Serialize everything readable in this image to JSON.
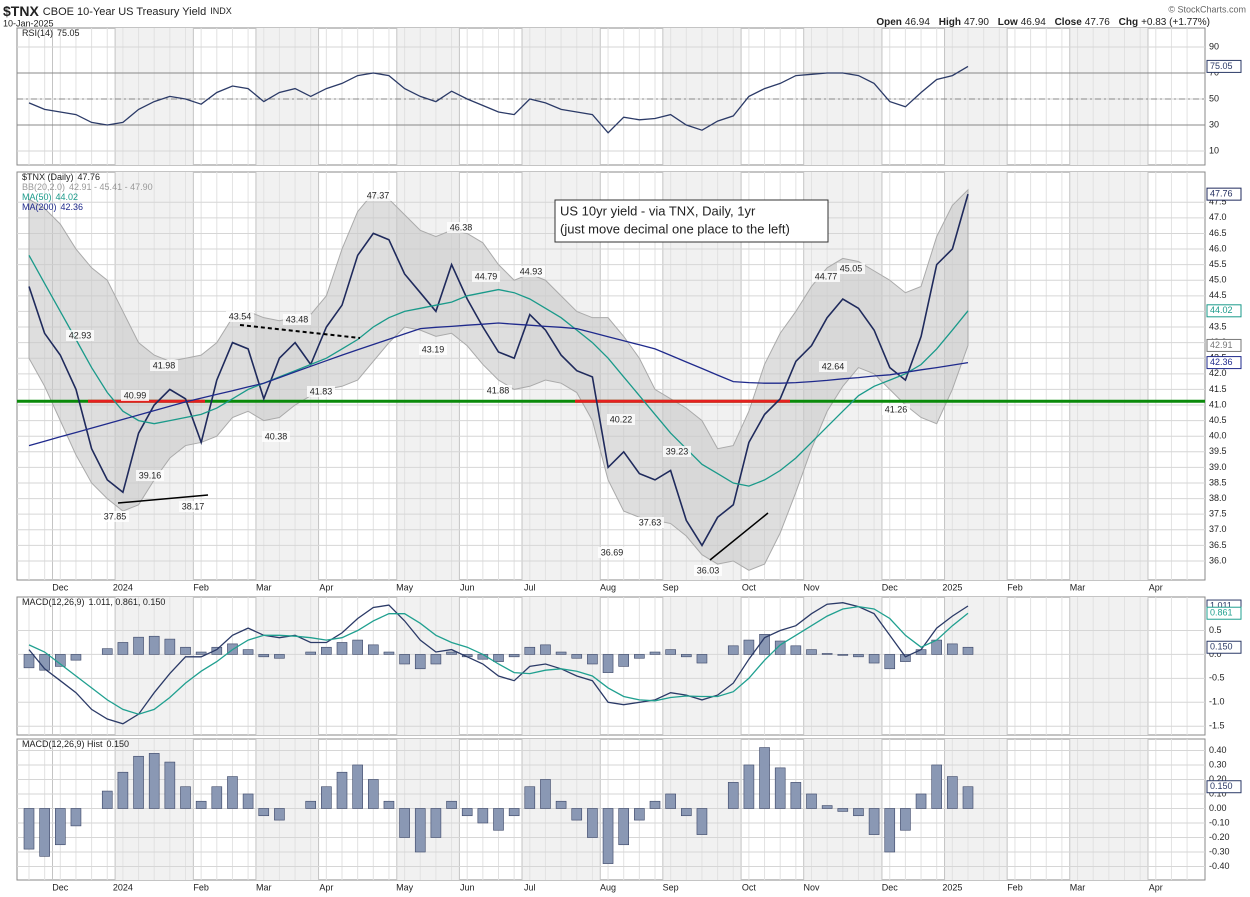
{
  "header": {
    "symbol": "$TNX",
    "name": "CBOE 10-Year US Treasury Yield",
    "exchange": "INDX",
    "date": "10-Jan-2025",
    "copyright": "© StockCharts.com",
    "quote": [
      {
        "label": "Open",
        "value": "46.94"
      },
      {
        "label": "High",
        "value": "47.90"
      },
      {
        "label": "Low",
        "value": "46.94"
      },
      {
        "label": "Close",
        "value": "47.76"
      },
      {
        "label": "Chg",
        "value": "+0.83 (+1.77%)"
      }
    ]
  },
  "chart_data": [
    {
      "type": "line",
      "ylim": [
        -0.8,
        104.6
      ],
      "yticks": [
        10,
        30,
        50,
        70,
        90
      ],
      "levels": [
        70,
        50,
        30
      ],
      "grid": true,
      "series": [
        {
          "name": "RSI(14)",
          "color": "#2b3a67",
          "values": [
            47,
            42,
            40,
            38,
            32,
            30,
            32,
            42,
            48,
            52,
            50,
            46,
            55,
            60,
            58,
            48,
            55,
            58,
            52,
            58,
            62,
            68,
            70,
            68,
            58,
            52,
            48,
            56,
            50,
            45,
            40,
            38,
            50,
            47,
            42,
            40,
            38,
            24,
            36,
            34,
            35,
            38,
            30,
            26,
            33,
            37,
            52,
            58,
            62,
            68,
            69,
            70,
            70,
            68,
            62,
            48,
            44,
            55,
            65,
            68,
            75.05,
            null,
            null,
            null,
            null,
            null,
            null,
            null,
            null,
            null,
            null,
            null,
            null,
            null,
            null
          ]
        }
      ]
    },
    {
      "type": "line",
      "ylim": [
        35.39,
        48.47
      ],
      "grid": true,
      "yticks": [
        {
          "value": 36,
          "label": "36.0"
        },
        36.5,
        {
          "value": 37,
          "label": "37.0"
        },
        37.5,
        {
          "value": 38,
          "label": "38.0"
        },
        38.5,
        {
          "value": 39,
          "label": "39.0"
        },
        39.5,
        {
          "value": 40,
          "label": "40.0"
        },
        40.5,
        {
          "value": 41,
          "label": "41.0"
        },
        41.5,
        {
          "value": 42,
          "label": "42.0"
        },
        42.5,
        {
          "value": 43,
          "label": "43.0"
        },
        43.5,
        {
          "value": 44,
          "label": "44.0"
        },
        44.5,
        {
          "value": 45,
          "label": "45.0"
        },
        45.5,
        {
          "value": 46,
          "label": "46.0"
        },
        46.5,
        {
          "value": 47,
          "label": "47.0"
        },
        47.5
      ],
      "categories": [
        null,
        null,
        "Dec",
        null,
        null,
        null,
        "2024",
        null,
        null,
        null,
        null,
        "Feb",
        null,
        null,
        null,
        "Mar",
        null,
        null,
        null,
        "Apr",
        null,
        null,
        null,
        null,
        "May",
        null,
        null,
        null,
        "Jun",
        null,
        null,
        null,
        "Jul",
        null,
        null,
        null,
        null,
        "Aug",
        null,
        null,
        null,
        "Sep",
        null,
        null,
        null,
        null,
        "Oct",
        null,
        null,
        null,
        "Nov",
        null,
        null,
        null,
        null,
        "Dec",
        null,
        null,
        null,
        "2025",
        null,
        null,
        null,
        "Feb",
        null,
        null,
        null,
        "Mar",
        null,
        null,
        null,
        null,
        "Apr",
        null,
        null
      ],
      "series": [
        {
          "name": "$TNX (Daily)",
          "color": "#1f2a5c",
          "values": [
            44.8,
            43.3,
            42.6,
            41.5,
            39.6,
            38.6,
            38.2,
            40.1,
            41.0,
            41.5,
            41.2,
            39.8,
            41.8,
            43.0,
            42.8,
            41.2,
            42.5,
            43.0,
            42.3,
            43.5,
            44.2,
            45.8,
            46.5,
            46.3,
            45.2,
            44.6,
            44.0,
            45.5,
            44.4,
            43.5,
            42.7,
            42.5,
            43.9,
            43.4,
            42.6,
            42.1,
            41.9,
            39.0,
            39.5,
            38.8,
            38.6,
            38.9,
            37.3,
            36.5,
            37.4,
            37.8,
            39.8,
            40.7,
            41.2,
            42.4,
            42.9,
            43.8,
            44.4,
            44.1,
            43.4,
            42.2,
            41.8,
            43.2,
            45.5,
            46.0,
            47.76,
            null,
            null,
            null,
            null,
            null,
            null,
            null,
            null,
            null,
            null,
            null,
            null,
            null,
            null
          ]
        },
        {
          "name": "MA(50)",
          "color": "#1a9a8a",
          "values": [
            45.8,
            44.9,
            44.0,
            43.1,
            42.2,
            41.4,
            40.8,
            40.5,
            40.4,
            40.5,
            40.6,
            40.7,
            40.9,
            41.2,
            41.5,
            41.7,
            41.9,
            42.1,
            42.3,
            42.5,
            42.8,
            43.1,
            43.5,
            43.8,
            44.0,
            44.1,
            44.2,
            44.3,
            44.5,
            44.6,
            44.7,
            44.6,
            44.4,
            44.1,
            43.8,
            43.4,
            43.0,
            42.5,
            41.9,
            41.3,
            40.7,
            40.1,
            39.6,
            39.1,
            38.8,
            38.5,
            38.4,
            38.6,
            38.9,
            39.3,
            39.8,
            40.3,
            40.8,
            41.3,
            41.6,
            41.8,
            42.0,
            42.3,
            42.8,
            43.4,
            44.02,
            null,
            null,
            null,
            null,
            null,
            null,
            null,
            null,
            null,
            null,
            null,
            null,
            null,
            null
          ]
        },
        {
          "name": "MA(200)",
          "color": "#1f2a8c",
          "values": [
            39.7,
            39.84,
            39.98,
            40.12,
            40.26,
            40.4,
            40.54,
            40.68,
            40.82,
            40.96,
            41.1,
            41.22,
            41.34,
            41.46,
            41.58,
            41.7,
            41.88,
            42.06,
            42.24,
            42.42,
            42.6,
            42.77,
            42.94,
            43.11,
            43.28,
            43.45,
            43.49,
            43.52,
            43.56,
            43.59,
            43.63,
            43.59,
            43.56,
            43.52,
            43.49,
            43.45,
            43.32,
            43.19,
            43.06,
            42.93,
            42.8,
            42.59,
            42.38,
            42.17,
            41.96,
            41.75,
            41.72,
            41.7,
            41.7,
            41.72,
            41.75,
            41.79,
            41.84,
            41.88,
            41.93,
            41.97,
            42.05,
            42.13,
            42.2,
            42.28,
            42.36,
            null,
            null,
            null,
            null,
            null,
            null,
            null,
            null,
            null,
            null,
            null,
            null,
            null,
            null
          ]
        }
      ],
      "bands": {
        "name": "BB(20,2.0)",
        "legend_values": "42.91 - 45.41 - 47.90",
        "color": "#c8c8c8",
        "upper": [
          47.6,
          47.3,
          46.8,
          46.0,
          45.4,
          45.0,
          44.0,
          43.0,
          42.6,
          42.4,
          42.5,
          42.6,
          43.0,
          43.8,
          44.0,
          43.8,
          43.7,
          43.8,
          43.9,
          44.5,
          46.0,
          47.2,
          47.8,
          47.6,
          47.1,
          46.6,
          46.4,
          46.6,
          46.5,
          46.2,
          45.5,
          45.0,
          45.2,
          45.0,
          44.5,
          44.0,
          43.8,
          43.8,
          43.2,
          42.5,
          41.5,
          41.2,
          40.9,
          40.5,
          39.6,
          39.7,
          40.8,
          42.3,
          43.3,
          44.0,
          44.8,
          45.4,
          45.7,
          45.6,
          45.3,
          45.0,
          44.6,
          44.8,
          46.4,
          47.4,
          47.9,
          null,
          null,
          null,
          null,
          null,
          null,
          null,
          null,
          null,
          null,
          null,
          null,
          null,
          null
        ],
        "lower": [
          42.5,
          41.6,
          40.5,
          39.4,
          38.5,
          38.0,
          37.6,
          37.8,
          38.6,
          39.3,
          39.7,
          39.8,
          40.0,
          40.6,
          40.8,
          40.5,
          40.6,
          41.0,
          41.3,
          41.5,
          41.6,
          41.8,
          42.4,
          43.0,
          43.5,
          43.4,
          43.2,
          43.3,
          42.9,
          42.3,
          41.8,
          41.5,
          41.6,
          41.8,
          41.7,
          41.4,
          40.5,
          38.6,
          37.6,
          37.4,
          37.3,
          37.2,
          36.8,
          36.2,
          35.9,
          36.0,
          35.7,
          35.9,
          36.9,
          38.2,
          39.6,
          40.8,
          41.6,
          42.2,
          42.0,
          41.5,
          41.0,
          40.6,
          40.4,
          41.5,
          42.91,
          null,
          null,
          null,
          null,
          null,
          null,
          null,
          null,
          null,
          null,
          null,
          null,
          null,
          null
        ]
      },
      "reference_line": {
        "value": 41.12,
        "color": "#0a8a0a"
      },
      "highlight_color": "#e52020",
      "point_labels": [
        47.37,
        46.38,
        44.79,
        44.93,
        43.54,
        43.48,
        42.93,
        41.98,
        40.99,
        41.83,
        40.38,
        39.16,
        37.85,
        38.17,
        43.19,
        41.88,
        40.22,
        39.23,
        37.63,
        36.69,
        36.03,
        44.77,
        45.05,
        42.64,
        41.26
      ],
      "annotation": [
        "US 10yr yield - via TNX, Daily, 1yr",
        "(just move decimal one place to the left)"
      ]
    },
    {
      "type": "line",
      "ylim": [
        -1.684,
        1.2
      ],
      "yticks": [
        -1.5,
        {
          "value": -1,
          "label": "-1.0"
        },
        -0.5,
        {
          "value": 0,
          "label": "0.0"
        },
        0.5
      ],
      "grid": true,
      "legend_values": "1.011, 0.861, 0.150",
      "series": [
        {
          "name": "MACD(12,26,9)",
          "color": "#2b3a67",
          "values": [
            0.1,
            -0.3,
            -0.55,
            -0.8,
            -1.15,
            -1.35,
            -1.45,
            -1.25,
            -0.8,
            -0.4,
            -0.05,
            -0.05,
            0.1,
            0.4,
            0.55,
            0.4,
            0.35,
            0.4,
            0.25,
            0.25,
            0.45,
            0.75,
            0.98,
            1.03,
            0.7,
            0.3,
            0.05,
            0.1,
            -0.05,
            -0.2,
            -0.45,
            -0.55,
            -0.25,
            -0.2,
            -0.3,
            -0.45,
            -0.55,
            -1.0,
            -1.05,
            -1.0,
            -0.95,
            -0.8,
            -0.85,
            -0.95,
            -0.85,
            -0.6,
            -0.1,
            0.35,
            0.5,
            0.6,
            0.85,
            1.05,
            1.08,
            1.0,
            0.85,
            0.4,
            -0.05,
            0.1,
            0.55,
            0.8,
            1.011,
            null,
            null,
            null,
            null,
            null,
            null,
            null,
            null,
            null,
            null,
            null,
            null,
            null,
            null
          ]
        },
        {
          "color": "#20a090",
          "values": [
            0.2,
            0.05,
            -0.2,
            -0.45,
            -0.7,
            -0.95,
            -1.15,
            -1.25,
            -1.15,
            -0.9,
            -0.6,
            -0.35,
            -0.15,
            0.1,
            0.3,
            0.4,
            0.4,
            0.38,
            0.35,
            0.3,
            0.35,
            0.5,
            0.7,
            0.85,
            0.85,
            0.65,
            0.4,
            0.25,
            0.15,
            0.0,
            -0.2,
            -0.38,
            -0.4,
            -0.33,
            -0.3,
            -0.35,
            -0.45,
            -0.7,
            -0.88,
            -0.95,
            -0.97,
            -0.9,
            -0.87,
            -0.88,
            -0.88,
            -0.78,
            -0.5,
            -0.12,
            0.2,
            0.4,
            0.6,
            0.8,
            0.95,
            1.0,
            0.95,
            0.75,
            0.4,
            0.15,
            0.3,
            0.6,
            0.861,
            null,
            null,
            null,
            null,
            null,
            null,
            null,
            null,
            null,
            null,
            null,
            null,
            null,
            null
          ]
        }
      ]
    },
    {
      "type": "bar",
      "name": "MACD(12,26,9) Hist",
      "color": "#8a98b4",
      "last_label": "0.150",
      "ylim": [
        -0.493,
        0.479
      ],
      "grid": true,
      "yticks": [
        {
          "value": -0.4,
          "label": "-0.40"
        },
        {
          "value": -0.3,
          "label": "-0.30"
        },
        {
          "value": -0.2,
          "label": "-0.20"
        },
        {
          "value": -0.1,
          "label": "-0.10"
        },
        {
          "value": 0,
          "label": "0.00"
        },
        {
          "value": 0.1,
          "label": "0.10"
        },
        {
          "value": 0.2,
          "label": "0.20"
        },
        {
          "value": 0.3,
          "label": "0.30"
        },
        {
          "value": 0.4,
          "label": "0.40"
        }
      ],
      "categories": [
        null,
        null,
        "Dec",
        null,
        null,
        null,
        "2024",
        null,
        null,
        null,
        null,
        "Feb",
        null,
        null,
        null,
        "Mar",
        null,
        null,
        null,
        "Apr",
        null,
        null,
        null,
        null,
        "May",
        null,
        null,
        null,
        "Jun",
        null,
        null,
        null,
        "Jul",
        null,
        null,
        null,
        null,
        "Aug",
        null,
        null,
        null,
        "Sep",
        null,
        null,
        null,
        null,
        "Oct",
        null,
        null,
        null,
        "Nov",
        null,
        null,
        null,
        null,
        "Dec",
        null,
        null,
        null,
        "2025",
        null,
        null,
        null,
        "Feb",
        null,
        null,
        null,
        "Mar",
        null,
        null,
        null,
        null,
        "Apr",
        null,
        null
      ],
      "values": [
        -0.28,
        -0.33,
        -0.25,
        -0.12,
        0.0,
        0.12,
        0.25,
        0.36,
        0.38,
        0.32,
        0.15,
        0.05,
        0.15,
        0.22,
        0.1,
        -0.05,
        -0.08,
        0.0,
        0.05,
        0.15,
        0.25,
        0.3,
        0.2,
        0.05,
        -0.2,
        -0.3,
        -0.2,
        0.05,
        -0.05,
        -0.1,
        -0.15,
        -0.05,
        0.15,
        0.2,
        0.05,
        -0.08,
        -0.2,
        -0.38,
        -0.25,
        -0.08,
        0.05,
        0.1,
        -0.05,
        -0.18,
        0.0,
        0.18,
        0.3,
        0.42,
        0.28,
        0.18,
        0.1,
        0.02,
        -0.02,
        -0.05,
        -0.18,
        -0.3,
        -0.15,
        0.1,
        0.3,
        0.22,
        0.15,
        null,
        null,
        null,
        null,
        null,
        null,
        null,
        null,
        null,
        null,
        null,
        null,
        null,
        null
      ]
    }
  ]
}
